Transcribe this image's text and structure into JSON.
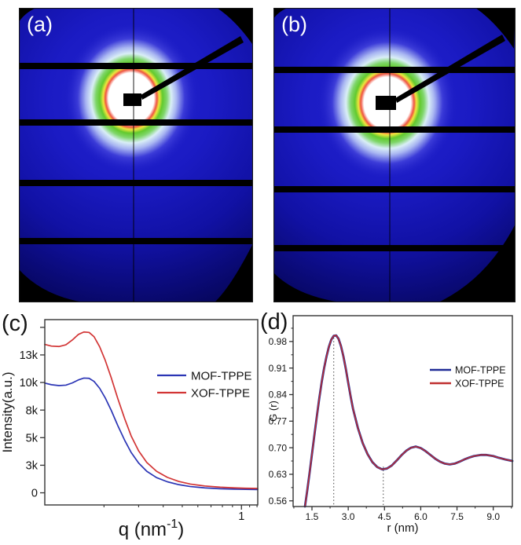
{
  "figure": {
    "panels": {
      "a": {
        "label": "(a)",
        "description": "2D SAXS detector pattern"
      },
      "b": {
        "label": "(b)",
        "description": "2D SAXS detector pattern"
      },
      "c": {
        "label": "(c)"
      },
      "d": {
        "label": "(d)"
      }
    }
  },
  "colors": {
    "detector_blue": "#1b1bc4",
    "detector_dark_blue": "#04044e",
    "beam_core_white": "#ffffff",
    "beam_ring_red": "#ef5340",
    "beam_ring_yellow": "#eee63e",
    "beam_ring_green": "#62ca2e",
    "beam_halo_pale": "#d9eef6",
    "beamstop_black": "#000000",
    "mof_blue_c": "#2b35b5",
    "xof_red_c": "#d23535",
    "mof_blue_d": "#1f2a96",
    "xof_red_d": "#c03030",
    "axis_color": "#333333"
  },
  "chart_data": [
    {
      "id": "c",
      "type": "line",
      "panel_label": "(c)",
      "xlabel": "q (nm⁻¹)",
      "xlabel_parts": {
        "main": "q (nm",
        "sup": "-1",
        "end": ")"
      },
      "ylabel": "Intensity(a.u.)",
      "x_scale": "log",
      "xlim": [
        0.1,
        1.21
      ],
      "ylim": [
        -1100,
        15700
      ],
      "grid": false,
      "legend_position": "upper right",
      "x_ticks": [
        {
          "v": 1,
          "label": "1"
        }
      ],
      "x_minor_ticks": [
        0.2,
        0.3,
        0.4,
        0.5,
        0.6,
        0.7,
        0.8,
        0.9,
        1.1,
        1.2
      ],
      "y_ticks": [
        {
          "v": 0,
          "label": "0"
        },
        {
          "v": 2500,
          "label": "3k"
        },
        {
          "v": 5000,
          "label": "5k"
        },
        {
          "v": 7500,
          "label": "8k"
        },
        {
          "v": 10000,
          "label": "10k"
        },
        {
          "v": 12500,
          "label": "13k"
        },
        {
          "v": 15000,
          "label": ""
        }
      ],
      "y_minor_ticks": [],
      "series": [
        {
          "name": "MOF-TPPE",
          "color": "#2b35b5",
          "width": 1.7,
          "points": [
            [
              0.1,
              9950
            ],
            [
              0.108,
              9800
            ],
            [
              0.118,
              9720
            ],
            [
              0.128,
              9760
            ],
            [
              0.138,
              9960
            ],
            [
              0.148,
              10230
            ],
            [
              0.158,
              10400
            ],
            [
              0.168,
              10380
            ],
            [
              0.178,
              10100
            ],
            [
              0.19,
              9480
            ],
            [
              0.203,
              8600
            ],
            [
              0.218,
              7450
            ],
            [
              0.235,
              6100
            ],
            [
              0.255,
              4750
            ],
            [
              0.275,
              3650
            ],
            [
              0.3,
              2700
            ],
            [
              0.33,
              1950
            ],
            [
              0.37,
              1380
            ],
            [
              0.42,
              1000
            ],
            [
              0.48,
              740
            ],
            [
              0.55,
              570
            ],
            [
              0.65,
              450
            ],
            [
              0.78,
              370
            ],
            [
              0.92,
              330
            ],
            [
              1.05,
              310
            ],
            [
              1.21,
              295
            ]
          ]
        },
        {
          "name": "XOF-TPPE",
          "color": "#d23535",
          "width": 1.7,
          "points": [
            [
              0.1,
              13450
            ],
            [
              0.108,
              13300
            ],
            [
              0.118,
              13260
            ],
            [
              0.128,
              13420
            ],
            [
              0.138,
              13850
            ],
            [
              0.148,
              14350
            ],
            [
              0.158,
              14580
            ],
            [
              0.168,
              14540
            ],
            [
              0.178,
              14150
            ],
            [
              0.19,
              13250
            ],
            [
              0.203,
              12000
            ],
            [
              0.218,
              10400
            ],
            [
              0.235,
              8550
            ],
            [
              0.255,
              6700
            ],
            [
              0.275,
              5150
            ],
            [
              0.3,
              3800
            ],
            [
              0.33,
              2750
            ],
            [
              0.37,
              1950
            ],
            [
              0.42,
              1400
            ],
            [
              0.48,
              1030
            ],
            [
              0.55,
              790
            ],
            [
              0.65,
              620
            ],
            [
              0.78,
              510
            ],
            [
              0.92,
              450
            ],
            [
              1.05,
              415
            ],
            [
              1.21,
              395
            ]
          ]
        }
      ]
    },
    {
      "id": "d",
      "type": "line",
      "panel_label": "(d)",
      "xlabel": "r (nm)",
      "ylabel": "G (r)",
      "x_scale": "linear",
      "xlim": [
        0.72,
        9.79
      ],
      "ylim": [
        0.545,
        1.048
      ],
      "grid": false,
      "legend_position": "upper right",
      "x_ticks": [
        {
          "v": 1.5,
          "label": "1.5"
        },
        {
          "v": 3.0,
          "label": "3.0"
        },
        {
          "v": 4.5,
          "label": "4.5"
        },
        {
          "v": 6.0,
          "label": "6.0"
        },
        {
          "v": 7.5,
          "label": "7.5"
        },
        {
          "v": 9.0,
          "label": "9.0"
        }
      ],
      "x_minor_ticks": [
        0.75,
        2.25,
        3.75,
        5.25,
        6.75,
        8.25,
        9.75
      ],
      "y_ticks": [
        {
          "v": 0.56,
          "label": "0.56"
        },
        {
          "v": 0.63,
          "label": "0.63"
        },
        {
          "v": 0.7,
          "label": "0.70"
        },
        {
          "v": 0.77,
          "label": "0.77"
        },
        {
          "v": 0.84,
          "label": "0.84"
        },
        {
          "v": 0.91,
          "label": "0.91"
        },
        {
          "v": 0.98,
          "label": "0.98"
        }
      ],
      "y_minor_ticks": [
        0.595,
        0.665,
        0.735,
        0.805,
        0.875,
        0.945,
        1.015
      ],
      "annotations_dotted_x": [
        {
          "x": 2.4,
          "y_top": 0.99
        },
        {
          "x": 4.45,
          "y_top": 0.65
        }
      ],
      "series": [
        {
          "name": "MOF-TPPE",
          "color": "#1f2a96",
          "width": 2.8,
          "points": [
            [
              1.21,
              0.545
            ],
            [
              1.3,
              0.585
            ],
            [
              1.4,
              0.633
            ],
            [
              1.5,
              0.683
            ],
            [
              1.6,
              0.733
            ],
            [
              1.7,
              0.782
            ],
            [
              1.8,
              0.829
            ],
            [
              1.9,
              0.872
            ],
            [
              2.0,
              0.909
            ],
            [
              2.1,
              0.94
            ],
            [
              2.2,
              0.966
            ],
            [
              2.3,
              0.985
            ],
            [
              2.4,
              0.995
            ],
            [
              2.5,
              0.996
            ],
            [
              2.6,
              0.987
            ],
            [
              2.7,
              0.968
            ],
            [
              2.8,
              0.941
            ],
            [
              2.9,
              0.908
            ],
            [
              3.0,
              0.871
            ],
            [
              3.1,
              0.835
            ],
            [
              3.2,
              0.802
            ],
            [
              3.4,
              0.752
            ],
            [
              3.6,
              0.712
            ],
            [
              3.8,
              0.683
            ],
            [
              4.0,
              0.662
            ],
            [
              4.2,
              0.649
            ],
            [
              4.4,
              0.643
            ],
            [
              4.6,
              0.645
            ],
            [
              4.8,
              0.653
            ],
            [
              5.0,
              0.666
            ],
            [
              5.2,
              0.68
            ],
            [
              5.4,
              0.692
            ],
            [
              5.6,
              0.7
            ],
            [
              5.8,
              0.703
            ],
            [
              6.0,
              0.699
            ],
            [
              6.2,
              0.691
            ],
            [
              6.4,
              0.681
            ],
            [
              6.6,
              0.671
            ],
            [
              6.8,
              0.663
            ],
            [
              7.0,
              0.658
            ],
            [
              7.2,
              0.656
            ],
            [
              7.4,
              0.658
            ],
            [
              7.6,
              0.663
            ],
            [
              7.8,
              0.669
            ],
            [
              8.0,
              0.674
            ],
            [
              8.2,
              0.678
            ],
            [
              8.5,
              0.681
            ],
            [
              8.7,
              0.681
            ],
            [
              9.0,
              0.678
            ],
            [
              9.2,
              0.674
            ],
            [
              9.5,
              0.669
            ],
            [
              9.79,
              0.665
            ]
          ]
        },
        {
          "name": "XOF-TPPE",
          "color": "#c03030",
          "width": 1.5,
          "points": [
            [
              1.21,
              0.545
            ],
            [
              1.3,
              0.585
            ],
            [
              1.4,
              0.633
            ],
            [
              1.5,
              0.683
            ],
            [
              1.6,
              0.733
            ],
            [
              1.7,
              0.782
            ],
            [
              1.8,
              0.829
            ],
            [
              1.9,
              0.872
            ],
            [
              2.0,
              0.909
            ],
            [
              2.1,
              0.94
            ],
            [
              2.2,
              0.966
            ],
            [
              2.3,
              0.985
            ],
            [
              2.4,
              0.995
            ],
            [
              2.5,
              0.996
            ],
            [
              2.6,
              0.987
            ],
            [
              2.7,
              0.968
            ],
            [
              2.8,
              0.941
            ],
            [
              2.9,
              0.908
            ],
            [
              3.0,
              0.871
            ],
            [
              3.1,
              0.835
            ],
            [
              3.2,
              0.802
            ],
            [
              3.4,
              0.752
            ],
            [
              3.6,
              0.712
            ],
            [
              3.8,
              0.683
            ],
            [
              4.0,
              0.662
            ],
            [
              4.2,
              0.649
            ],
            [
              4.4,
              0.643
            ],
            [
              4.6,
              0.645
            ],
            [
              4.8,
              0.653
            ],
            [
              5.0,
              0.666
            ],
            [
              5.2,
              0.68
            ],
            [
              5.4,
              0.692
            ],
            [
              5.6,
              0.7
            ],
            [
              5.8,
              0.703
            ],
            [
              6.0,
              0.699
            ],
            [
              6.2,
              0.691
            ],
            [
              6.4,
              0.681
            ],
            [
              6.6,
              0.671
            ],
            [
              6.8,
              0.663
            ],
            [
              7.0,
              0.658
            ],
            [
              7.2,
              0.656
            ],
            [
              7.4,
              0.658
            ],
            [
              7.6,
              0.663
            ],
            [
              7.8,
              0.669
            ],
            [
              8.0,
              0.674
            ],
            [
              8.2,
              0.678
            ],
            [
              8.5,
              0.681
            ],
            [
              8.7,
              0.681
            ],
            [
              9.0,
              0.678
            ],
            [
              9.2,
              0.674
            ],
            [
              9.5,
              0.669
            ],
            [
              9.79,
              0.665
            ]
          ]
        }
      ]
    }
  ]
}
